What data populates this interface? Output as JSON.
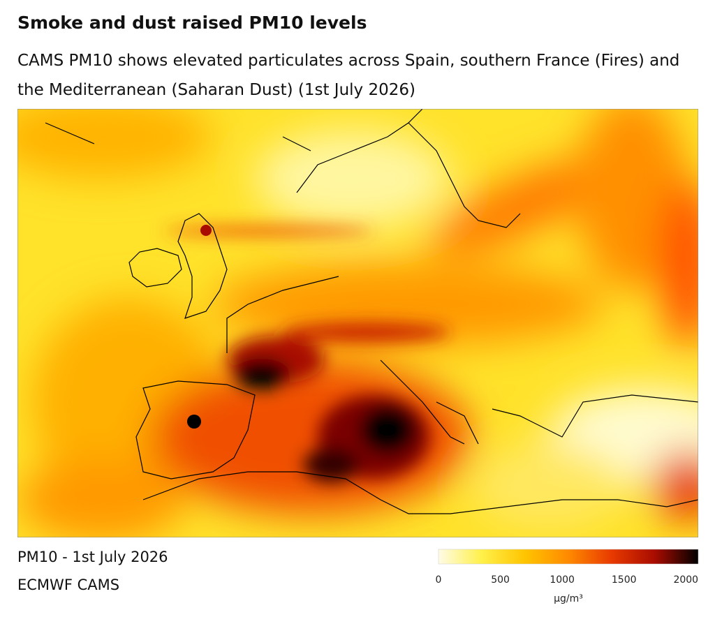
{
  "header": {
    "title": "Smoke and dust raised PM10 levels",
    "subtitle": "CAMS PM10 shows elevated particulates across Spain, southern France (Fires) and the Mediterranean (Saharan Dust) (1st July 2026)"
  },
  "map": {
    "caption": "PM10 - 1st July 2026",
    "source": "ECMWF CAMS"
  },
  "colorbar": {
    "lim": [
      0,
      2100
    ],
    "ticks": [
      0,
      500,
      1000,
      1500,
      2000
    ],
    "unit": "µg/m³",
    "colors": [
      "#fffbe6",
      "#fff04a",
      "#ffc400",
      "#ff8a00",
      "#e83a00",
      "#a80c00",
      "#000000"
    ]
  }
}
